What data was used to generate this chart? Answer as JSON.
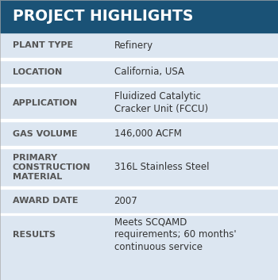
{
  "title": "PROJECT HIGHLIGHTS",
  "title_bg": "#1a5276",
  "title_color": "#ffffff",
  "header_fontsize": 13.5,
  "row_label_fontsize": 8.0,
  "row_value_fontsize": 8.5,
  "label_color": "#555555",
  "value_color": "#333333",
  "bg_color": "#dce6f1",
  "divider_color": "#ffffff",
  "rows": [
    {
      "label": "PLANT TYPE",
      "value": "Refinery"
    },
    {
      "label": "LOCATION",
      "value": "California, USA"
    },
    {
      "label": "APPLICATION",
      "value": "Fluidized Catalytic\nCracker Unit (FCCU)"
    },
    {
      "label": "GAS VOLUME",
      "value": "146,000 ACFM"
    },
    {
      "label": "PRIMARY\nCONSTRUCTION\nMATERIAL",
      "value": "316L Stainless Steel"
    },
    {
      "label": "AWARD DATE",
      "value": "2007"
    },
    {
      "label": "RESULTS",
      "value": "Meets SCQAMD\nrequirements; 60 months'\ncontinuous service"
    }
  ]
}
